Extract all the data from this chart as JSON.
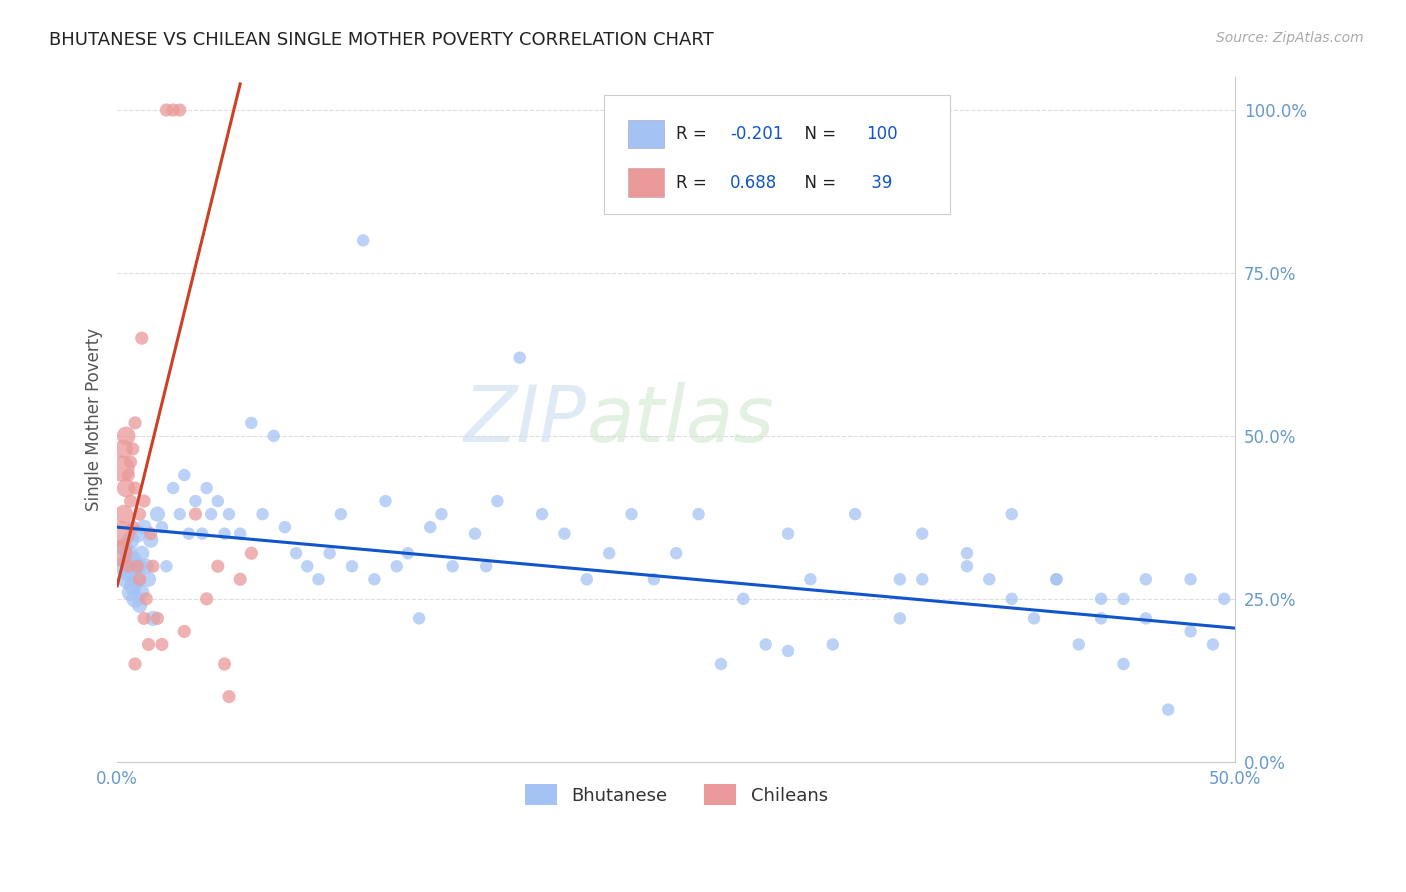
{
  "title": "BHUTANESE VS CHILEAN SINGLE MOTHER POVERTY CORRELATION CHART",
  "source": "Source: ZipAtlas.com",
  "ylabel": "Single Mother Poverty",
  "legend_label1": "Bhutanese",
  "legend_label2": "Chileans",
  "blue_R": "-0.201",
  "blue_N": "100",
  "pink_R": "0.688",
  "pink_N": "39",
  "blue_color": "#a4c2f4",
  "pink_color": "#ea9999",
  "blue_line_color": "#1155cc",
  "pink_line_color": "#cc4125",
  "watermark_zip": "ZIP",
  "watermark_atlas": "atlas",
  "xlim": [
    0.0,
    0.5
  ],
  "ylim": [
    0.0,
    1.05
  ],
  "xticks": [
    0.0,
    0.5
  ],
  "xtick_labels": [
    "0.0%",
    "50.0%"
  ],
  "yticks": [
    0.0,
    0.25,
    0.5,
    0.75,
    1.0
  ],
  "ytick_labels": [
    "0.0%",
    "25.0%",
    "50.0%",
    "75.0%",
    "100.0%"
  ],
  "blue_trend_x": [
    0.0,
    0.5
  ],
  "blue_trend_y": [
    0.36,
    0.205
  ],
  "pink_trend_x": [
    0.0,
    0.055
  ],
  "pink_trend_y": [
    0.27,
    1.04
  ],
  "bhutanese_x": [
    0.002,
    0.003,
    0.004,
    0.005,
    0.005,
    0.006,
    0.006,
    0.007,
    0.007,
    0.008,
    0.008,
    0.009,
    0.009,
    0.01,
    0.01,
    0.011,
    0.011,
    0.012,
    0.013,
    0.014,
    0.015,
    0.016,
    0.018,
    0.02,
    0.022,
    0.025,
    0.028,
    0.03,
    0.032,
    0.035,
    0.038,
    0.04,
    0.042,
    0.045,
    0.048,
    0.05,
    0.055,
    0.06,
    0.065,
    0.07,
    0.075,
    0.08,
    0.085,
    0.09,
    0.095,
    0.1,
    0.105,
    0.11,
    0.115,
    0.12,
    0.125,
    0.13,
    0.135,
    0.14,
    0.145,
    0.15,
    0.16,
    0.165,
    0.17,
    0.18,
    0.19,
    0.2,
    0.21,
    0.22,
    0.23,
    0.24,
    0.25,
    0.26,
    0.27,
    0.28,
    0.29,
    0.3,
    0.31,
    0.32,
    0.33,
    0.35,
    0.36,
    0.38,
    0.39,
    0.4,
    0.41,
    0.42,
    0.43,
    0.44,
    0.45,
    0.46,
    0.47,
    0.48,
    0.49,
    0.495,
    0.3,
    0.35,
    0.4,
    0.45,
    0.38,
    0.42,
    0.36,
    0.44,
    0.46,
    0.48
  ],
  "bhutanese_y": [
    0.3,
    0.33,
    0.28,
    0.29,
    0.32,
    0.26,
    0.34,
    0.27,
    0.31,
    0.25,
    0.3,
    0.28,
    0.35,
    0.24,
    0.3,
    0.32,
    0.26,
    0.36,
    0.3,
    0.28,
    0.34,
    0.22,
    0.38,
    0.36,
    0.3,
    0.42,
    0.38,
    0.44,
    0.35,
    0.4,
    0.35,
    0.42,
    0.38,
    0.4,
    0.35,
    0.38,
    0.35,
    0.52,
    0.38,
    0.5,
    0.36,
    0.32,
    0.3,
    0.28,
    0.32,
    0.38,
    0.3,
    0.8,
    0.28,
    0.4,
    0.3,
    0.32,
    0.22,
    0.36,
    0.38,
    0.3,
    0.35,
    0.3,
    0.4,
    0.62,
    0.38,
    0.35,
    0.28,
    0.32,
    0.38,
    0.28,
    0.32,
    0.38,
    0.15,
    0.25,
    0.18,
    0.17,
    0.28,
    0.18,
    0.38,
    0.22,
    0.28,
    0.32,
    0.28,
    0.25,
    0.22,
    0.28,
    0.18,
    0.22,
    0.25,
    0.28,
    0.08,
    0.2,
    0.18,
    0.25,
    0.35,
    0.28,
    0.38,
    0.15,
    0.3,
    0.28,
    0.35,
    0.25,
    0.22,
    0.28
  ],
  "chilean_x": [
    0.001,
    0.002,
    0.002,
    0.003,
    0.003,
    0.004,
    0.004,
    0.005,
    0.005,
    0.006,
    0.006,
    0.007,
    0.007,
    0.008,
    0.008,
    0.009,
    0.01,
    0.011,
    0.012,
    0.013,
    0.015,
    0.016,
    0.018,
    0.02,
    0.022,
    0.025,
    0.028,
    0.03,
    0.035,
    0.04,
    0.045,
    0.048,
    0.05,
    0.055,
    0.06,
    0.012,
    0.014,
    0.01,
    0.008
  ],
  "chilean_y": [
    0.32,
    0.35,
    0.45,
    0.38,
    0.48,
    0.42,
    0.5,
    0.44,
    0.3,
    0.46,
    0.4,
    0.48,
    0.36,
    0.52,
    0.42,
    0.3,
    0.38,
    0.65,
    0.4,
    0.25,
    0.35,
    0.3,
    0.22,
    0.18,
    1.0,
    1.0,
    1.0,
    0.2,
    0.38,
    0.25,
    0.3,
    0.15,
    0.1,
    0.28,
    0.32,
    0.22,
    0.18,
    0.28,
    0.15
  ],
  "chilean_sizes_large": [
    400,
    300,
    200
  ],
  "chilean_large_idx": [
    0,
    1,
    2
  ]
}
